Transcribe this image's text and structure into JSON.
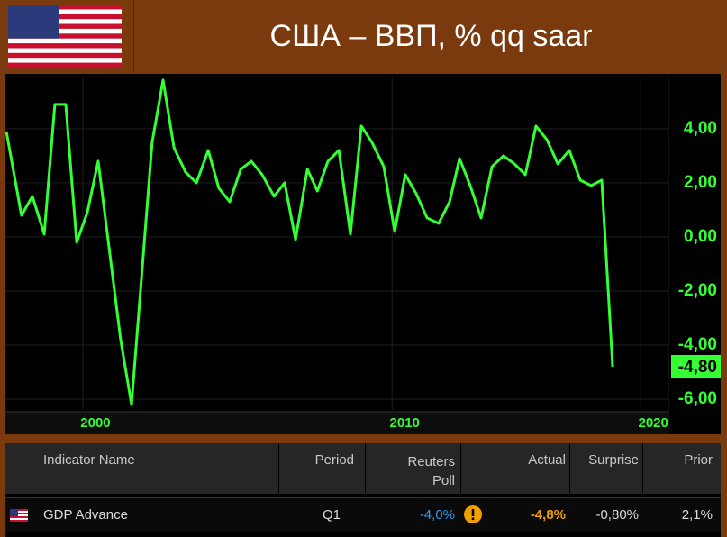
{
  "header": {
    "title": "США – ВВП, % qq saar"
  },
  "chart_data": {
    "type": "line",
    "x": [
      1997.16,
      1997.66,
      1998.02,
      1998.41,
      1998.76,
      1999.12,
      1999.48,
      1999.83,
      2000.19,
      2000.93,
      2001.29,
      2001.97,
      2002.33,
      2002.69,
      2003.07,
      2003.43,
      2003.82,
      2004.17,
      2004.53,
      2004.89,
      2005.24,
      2005.6,
      2005.99,
      2006.34,
      2006.7,
      2007.09,
      2007.42,
      2007.77,
      2008.13,
      2008.51,
      2008.87,
      2009.22,
      2009.61,
      2009.97,
      2010.32,
      2010.68,
      2011.04,
      2011.42,
      2011.78,
      2012.11,
      2012.46,
      2012.82,
      2013.18,
      2013.56,
      2013.92,
      2014.28,
      2014.63,
      2014.99,
      2015.35,
      2015.73,
      2016.09,
      2016.45,
      2016.8,
      2017.16
    ],
    "values": [
      3.9,
      0.8,
      1.5,
      0.1,
      4.9,
      4.9,
      -0.2,
      0.9,
      2.8,
      -3.8,
      -6.2,
      3.5,
      5.8,
      3.3,
      2.4,
      2.0,
      3.2,
      1.8,
      1.3,
      2.5,
      2.8,
      2.3,
      1.5,
      2.0,
      -0.1,
      2.5,
      1.7,
      2.8,
      3.2,
      0.1,
      4.1,
      3.5,
      2.6,
      0.2,
      2.3,
      1.6,
      0.7,
      0.5,
      1.3,
      2.9,
      1.9,
      0.7,
      2.6,
      3.0,
      2.7,
      2.3,
      4.1,
      3.6,
      2.7,
      3.2,
      2.1,
      1.9,
      2.1,
      -4.8
    ],
    "value_labels": [
      null,
      null,
      null,
      null,
      null,
      null,
      null,
      null,
      null,
      null,
      null,
      null,
      null,
      null,
      null,
      null,
      null,
      null,
      null,
      null,
      null,
      null,
      null,
      null,
      null,
      null,
      null,
      null,
      null,
      null,
      null,
      null,
      null,
      null,
      null,
      null,
      null,
      null,
      null,
      null,
      null,
      null,
      null,
      null,
      null,
      null,
      null,
      null,
      null,
      null,
      null,
      null,
      null,
      "-4,80"
    ],
    "color": "#33ff33",
    "xlim": [
      1997.1,
      2019.0
    ],
    "xticks": [
      {
        "value": 2000.1,
        "label": "2000"
      },
      {
        "value": 2010.3,
        "label": "2010"
      },
      {
        "value": 2018.5,
        "label": "2020"
      }
    ],
    "ylim": [
      -6.4,
      5.93
    ],
    "yticks": [
      {
        "value": -6,
        "label": "-6,00"
      },
      {
        "value": -4,
        "label": "-4,00"
      },
      {
        "value": -2,
        "label": "-2,00"
      },
      {
        "value": 0,
        "label": "0,00"
      },
      {
        "value": 2,
        "label": "2,00"
      },
      {
        "value": 4,
        "label": "4,00"
      }
    ],
    "grid": true
  },
  "table": {
    "columns": [
      "Indicator Name",
      "Period",
      "Reuters Poll",
      "Actual",
      "Surprise",
      "Prior"
    ],
    "rows": [
      [
        "GDP Advance",
        "Q1",
        "-4,0%",
        "-4,8%",
        "-0,80%",
        "2,1%"
      ]
    ]
  }
}
